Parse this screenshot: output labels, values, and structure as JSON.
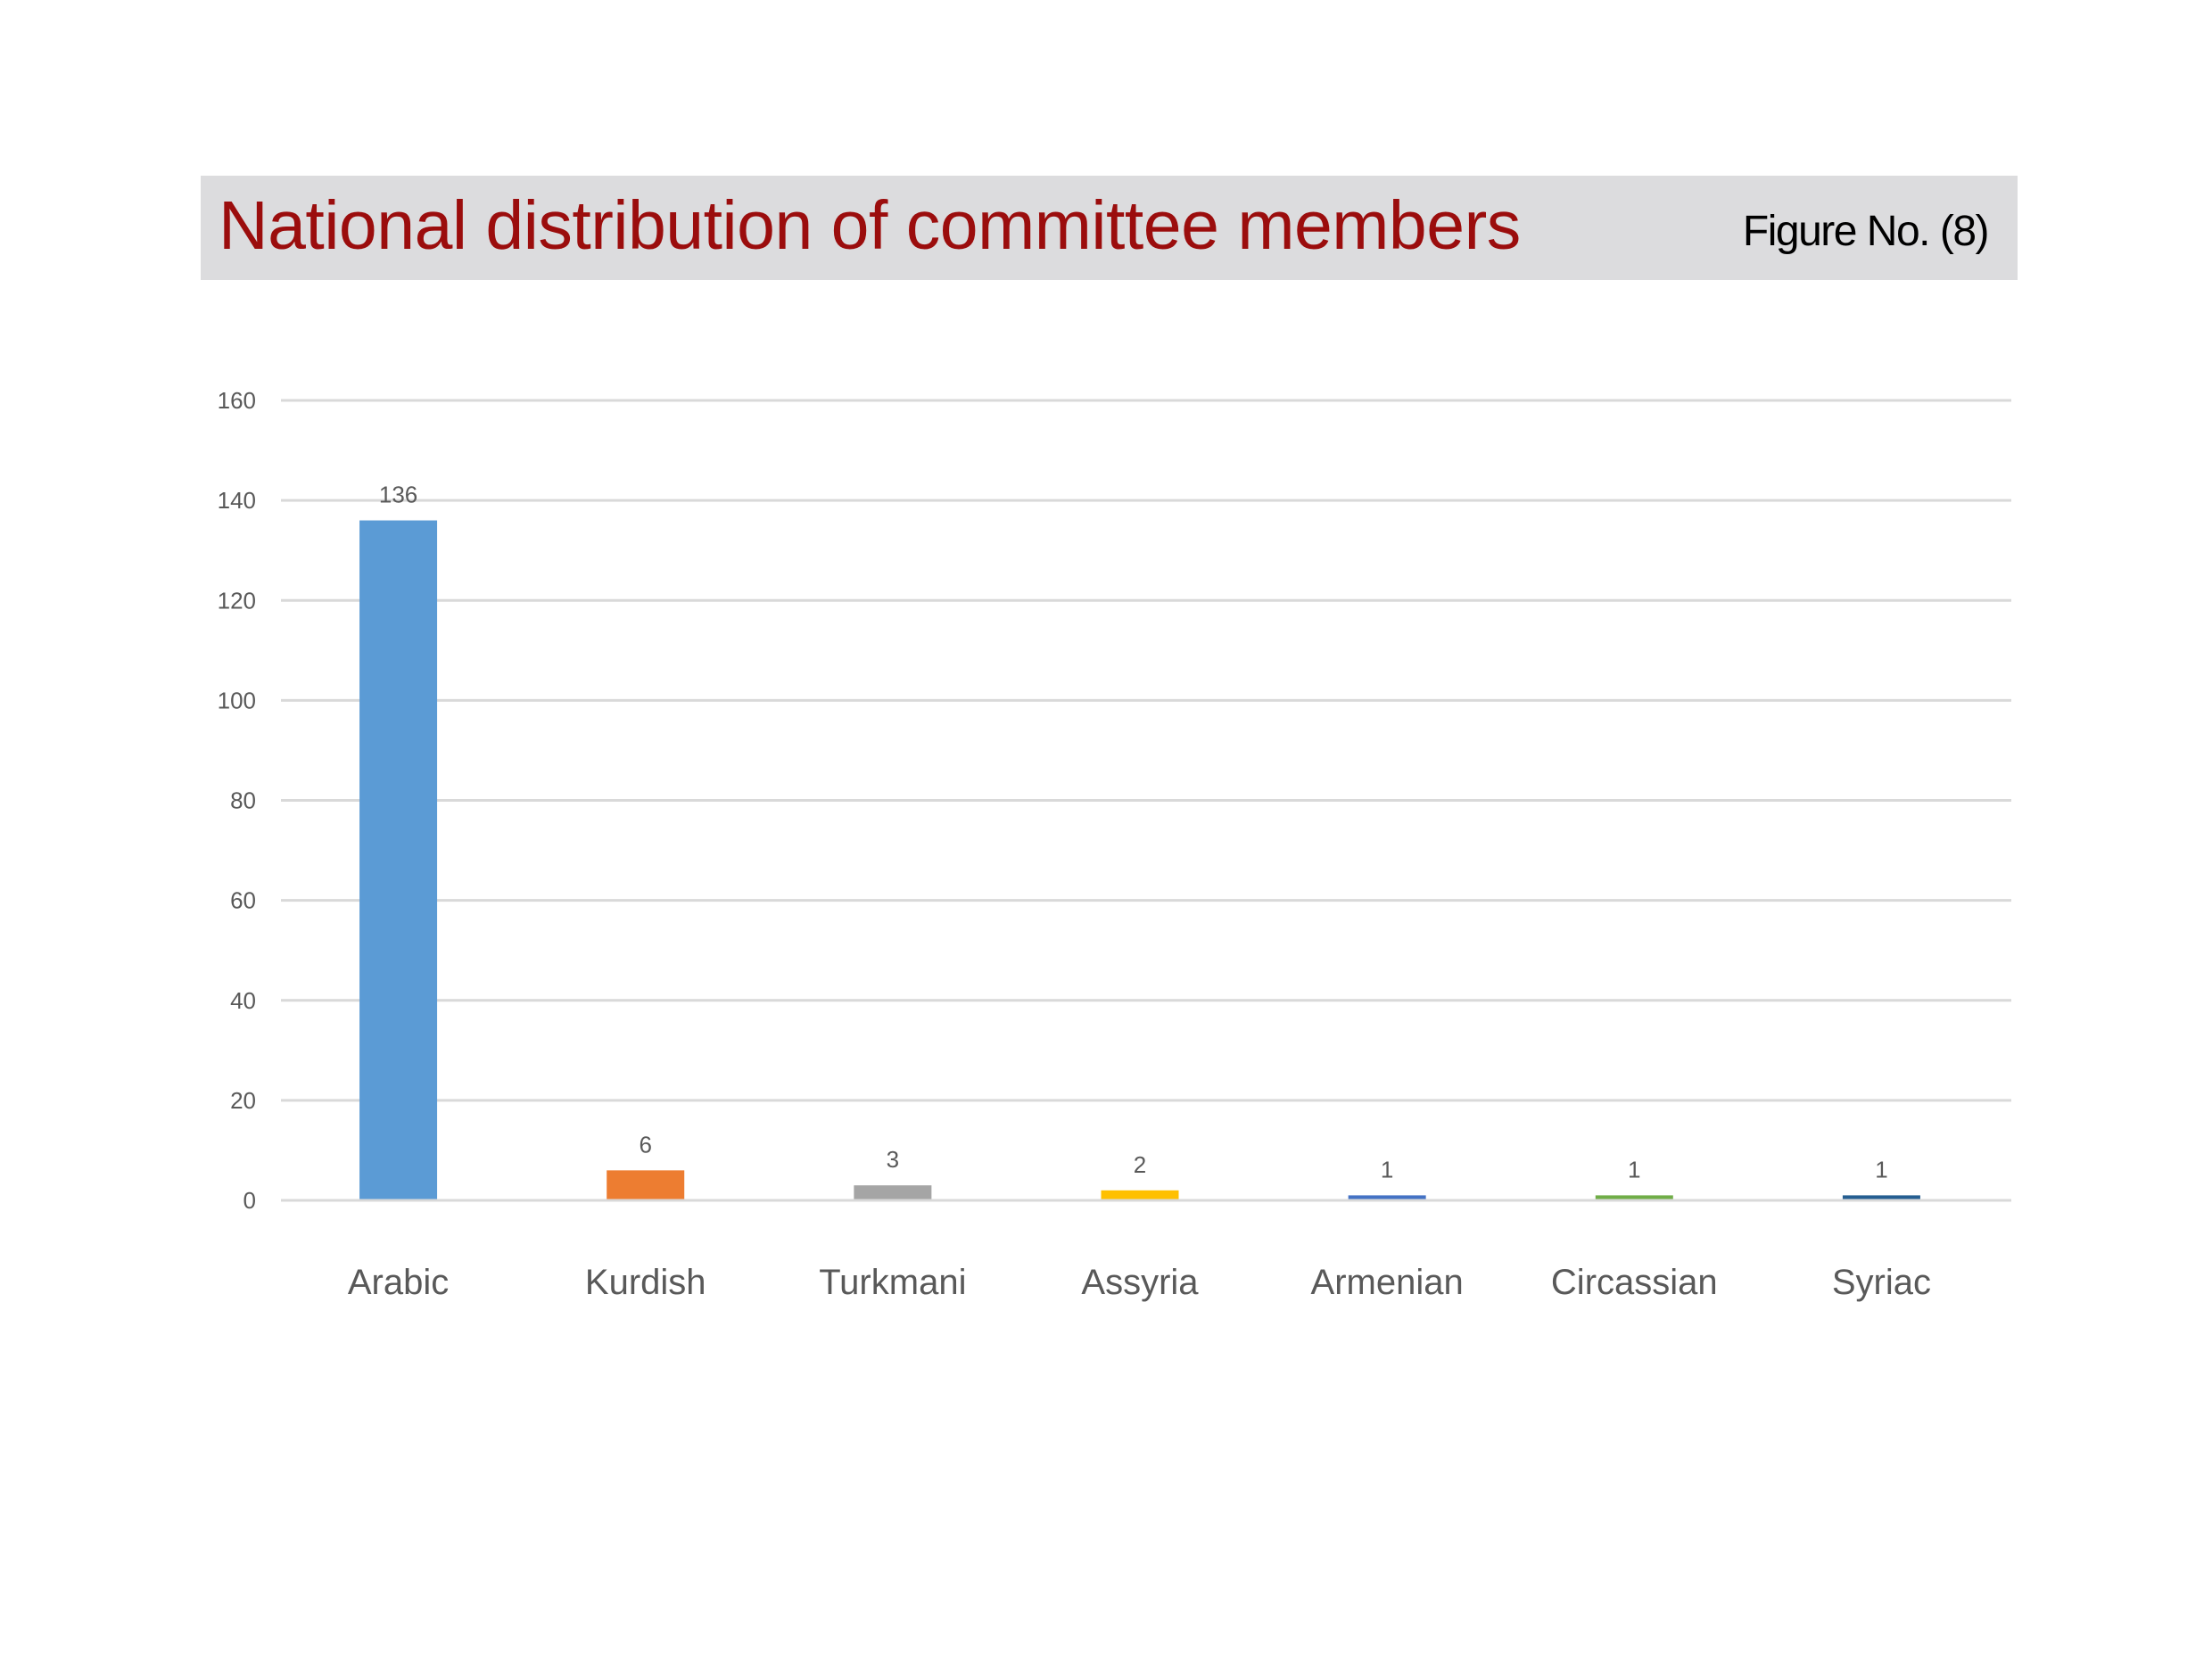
{
  "header": {
    "title": "National distribution of committee members",
    "figure_label": "Figure No. (8)"
  },
  "colors": {
    "title_text": "#9b0d0d",
    "title_bar": "#dcdcde",
    "grid": "#d9d9d9",
    "tick_text": "#595959",
    "category_text": "#595959"
  },
  "chart_data": {
    "type": "bar",
    "title": "National distribution of committee members",
    "categories": [
      "Arabic",
      "Kurdish",
      "Turkmani",
      "Assyria",
      "Armenian",
      "Circassian",
      "Syriac"
    ],
    "values": [
      136,
      6,
      3,
      2,
      1,
      1,
      1
    ],
    "bar_colors": [
      "#5b9bd5",
      "#ed7d31",
      "#a5a5a5",
      "#ffc000",
      "#4472c4",
      "#70ad47",
      "#255e91"
    ],
    "ylim": [
      0,
      160
    ],
    "yticks": [
      0,
      20,
      40,
      60,
      80,
      100,
      120,
      140,
      160
    ],
    "grid": true,
    "legend": "none",
    "data_labels": true,
    "xlabel": "",
    "ylabel": ""
  }
}
